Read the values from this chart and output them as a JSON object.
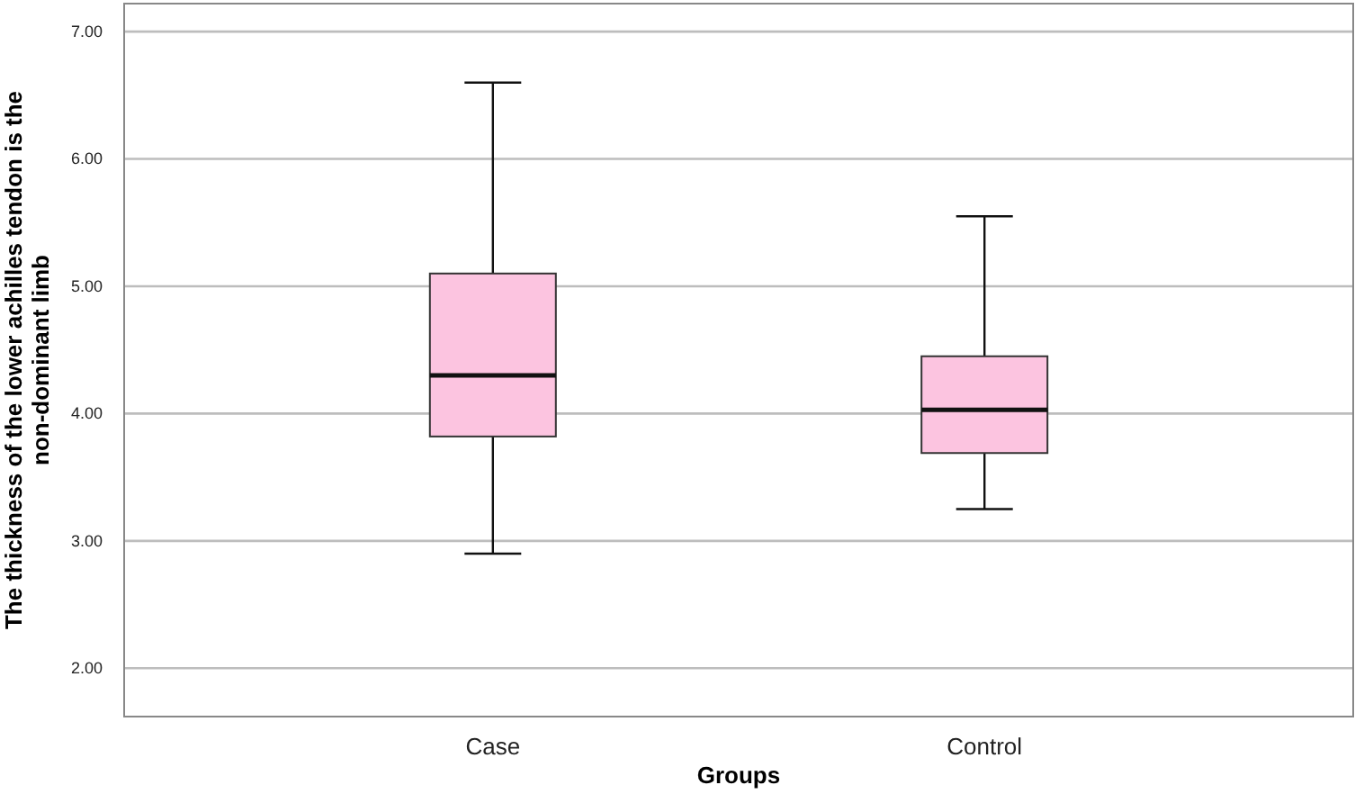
{
  "chart_data": {
    "type": "box",
    "xlabel": "Groups",
    "ylabel": "The thickness of the lower achilles tendon is the non-dominant limb",
    "categories": [
      "Case",
      "Control"
    ],
    "boxes": [
      {
        "low": 2.9,
        "q1": 3.82,
        "median": 4.3,
        "q3": 5.1,
        "high": 6.6
      },
      {
        "low": 3.25,
        "q1": 3.69,
        "median": 4.03,
        "q3": 4.45,
        "high": 5.55
      }
    ],
    "color": "#fcc4e0",
    "ylim": [
      1.62,
      7.22
    ],
    "yticks": [
      {
        "value": 2,
        "label": "2.00"
      },
      {
        "value": 3,
        "label": "3.00"
      },
      {
        "value": 4,
        "label": "4.00"
      },
      {
        "value": 5,
        "label": "5.00"
      },
      {
        "value": 6,
        "label": "6.00"
      },
      {
        "value": 7,
        "label": "7.00"
      }
    ],
    "grid": "y"
  }
}
